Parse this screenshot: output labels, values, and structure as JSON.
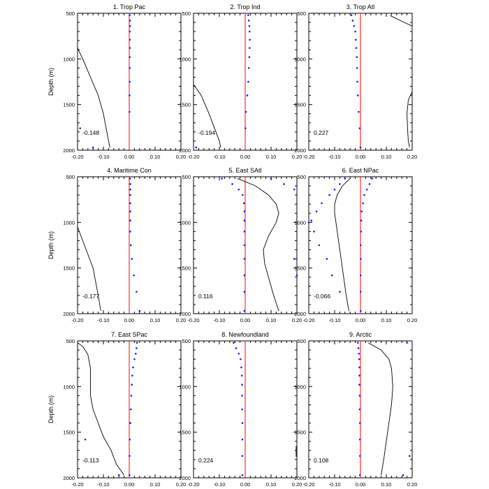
{
  "colors": {
    "zero_line": "#ff0000",
    "dots": "#1a1aff",
    "curve": "#000000",
    "axes": "#000000"
  },
  "chart_data": [
    {
      "type": "line",
      "title": "1. Trop Pac",
      "value_label": "-0.148",
      "xlim": [
        -0.2,
        0.2
      ],
      "ylim": [
        2000,
        500
      ],
      "ylabel": "Depth (m)",
      "x_ticks": [
        "-0.20",
        "-0.10",
        "0.00",
        "0.10",
        "0.20"
      ],
      "y_ticks": [
        "500",
        "1000",
        "1500",
        "2000"
      ],
      "curve": {
        "x": [
          -0.2,
          -0.18,
          -0.15,
          -0.12,
          -0.1,
          -0.09,
          -0.08,
          -0.075
        ],
        "y": [
          880,
          1000,
          1200,
          1400,
          1600,
          1750,
          1900,
          1970
        ]
      },
      "dots": {
        "x": [
          0.002,
          0.003,
          0.003,
          0.002,
          0.002,
          0.002,
          0.002,
          0.002,
          0.002,
          0.001,
          0.001,
          -0.19,
          -0.14
        ],
        "y": [
          520,
          580,
          640,
          700,
          790,
          880,
          980,
          1100,
          1250,
          1400,
          1580,
          1760,
          1970
        ]
      }
    },
    {
      "type": "line",
      "title": "2. Trop Ind",
      "value_label": "-0.194",
      "xlim": [
        -0.2,
        0.2
      ],
      "ylim": [
        2000,
        500
      ],
      "x_ticks": [
        "-0.20",
        "-0.10",
        "0.00",
        "0.10",
        "0.20"
      ],
      "y_ticks": [
        "500",
        "1000",
        "1500",
        "2000"
      ],
      "curve": {
        "x": [
          -0.2,
          -0.17,
          -0.14,
          -0.12,
          -0.1,
          -0.095
        ],
        "y": [
          1280,
          1400,
          1600,
          1750,
          1900,
          1970
        ]
      },
      "dots": {
        "x": [
          0.012,
          0.014,
          0.016,
          0.017,
          0.018,
          0.017,
          0.016,
          0.014,
          0.012,
          0.008,
          0.003,
          0.001,
          -0.19
        ],
        "y": [
          520,
          580,
          640,
          700,
          790,
          880,
          980,
          1100,
          1250,
          1400,
          1580,
          1760,
          1970
        ]
      }
    },
    {
      "type": "line",
      "title": "3. Trop Atl",
      "value_label": "0.227",
      "xlim": [
        -0.2,
        0.2
      ],
      "ylim": [
        2000,
        500
      ],
      "x_ticks": [
        "-0.20",
        "-0.10",
        "0.00",
        "0.10",
        "0.20"
      ],
      "y_ticks": [
        "500",
        "1000",
        "1500",
        "2000"
      ],
      "curves": [
        {
          "x": [
            0.115,
            0.14,
            0.17,
            0.2
          ],
          "y": [
            525,
            560,
            600,
            640
          ]
        },
        {
          "x": [
            0.2,
            0.185,
            0.18,
            0.182,
            0.185,
            0.19
          ],
          "y": [
            1360,
            1450,
            1600,
            1750,
            1900,
            1970
          ]
        }
      ],
      "dots": {
        "x": [
          -0.035,
          -0.03,
          -0.025,
          -0.02,
          -0.018,
          -0.016,
          -0.014,
          -0.013,
          -0.012,
          -0.01,
          -0.007,
          -0.003,
          0.0
        ],
        "y": [
          520,
          580,
          640,
          700,
          790,
          880,
          980,
          1100,
          1250,
          1400,
          1580,
          1760,
          1970
        ]
      }
    },
    {
      "type": "line",
      "title": "4. Maritime Con",
      "value_label": "-0.177",
      "xlim": [
        -0.2,
        0.2
      ],
      "ylim": [
        2000,
        500
      ],
      "ylabel": "Depth (m)",
      "x_ticks": [
        "-0.20",
        "-0.10",
        "0.00",
        "0.10",
        "0.20"
      ],
      "y_ticks": [
        "500",
        "1000",
        "1500",
        "2000"
      ],
      "curve": {
        "x": [
          -0.2,
          -0.18,
          -0.16,
          -0.14,
          -0.13,
          -0.12,
          -0.11
        ],
        "y": [
          1050,
          1200,
          1350,
          1500,
          1650,
          1800,
          1970
        ]
      },
      "dots": {
        "x": [
          0.003,
          0.004,
          0.004,
          0.004,
          0.004,
          0.004,
          0.004,
          0.004,
          0.006,
          0.01,
          0.018,
          0.028,
          0.04
        ],
        "y": [
          520,
          580,
          640,
          700,
          790,
          880,
          980,
          1100,
          1250,
          1400,
          1580,
          1760,
          1970
        ]
      }
    },
    {
      "type": "line",
      "title": "5. East SAtl",
      "value_label": "0.116",
      "xlim": [
        -0.2,
        0.2
      ],
      "ylim": [
        2000,
        500
      ],
      "x_ticks": [
        "-0.20",
        "-0.10",
        "0.00",
        "0.10",
        "0.20"
      ],
      "y_ticks": [
        "500",
        "1000",
        "1500",
        "2000"
      ],
      "curve": {
        "x": [
          -0.03,
          0.04,
          0.09,
          0.12,
          0.13,
          0.12,
          0.09,
          0.07,
          0.075,
          0.09,
          0.11,
          0.13
        ],
        "y": [
          520,
          600,
          700,
          800,
          900,
          1000,
          1150,
          1300,
          1450,
          1600,
          1800,
          1970
        ]
      },
      "dots": {
        "x": [
          -0.09,
          -0.05,
          -0.025,
          -0.01,
          -0.005,
          -0.003,
          -0.003,
          -0.003,
          -0.003,
          -0.003,
          -0.003,
          -0.003,
          -0.003,
          0.1,
          0.15,
          0.19,
          0.19,
          0.2
        ],
        "y": [
          520,
          580,
          640,
          700,
          790,
          880,
          980,
          1100,
          1250,
          1400,
          1580,
          1760,
          1970,
          520,
          580,
          640,
          1400,
          1580
        ]
      }
    },
    {
      "type": "line",
      "title": "6. East NPac",
      "value_label": "-0.066",
      "xlim": [
        -0.2,
        0.2
      ],
      "ylim": [
        2000,
        500
      ],
      "x_ticks": [
        "-0.20",
        "-0.10",
        "0.00",
        "0.10",
        "0.20"
      ],
      "y_ticks": [
        "500",
        "1000",
        "1500",
        "2000"
      ],
      "curve": {
        "x": [
          -0.04,
          -0.07,
          -0.09,
          -0.1,
          -0.1,
          -0.095,
          -0.085,
          -0.075,
          -0.065,
          -0.055,
          -0.045
        ],
        "y": [
          520,
          600,
          700,
          800,
          900,
          1000,
          1200,
          1400,
          1600,
          1800,
          1970
        ]
      },
      "dots": {
        "x": [
          -0.06,
          -0.08,
          -0.1,
          -0.12,
          -0.15,
          -0.17,
          -0.19,
          -0.18,
          -0.16,
          -0.13,
          -0.11,
          -0.08,
          0.045,
          0.035,
          0.025,
          0.015,
          0.01,
          0.005,
          0.003,
          0.002,
          0.001,
          0.001,
          0.001,
          0.001,
          0.001,
          -0.2
        ],
        "y": [
          520,
          580,
          640,
          700,
          790,
          880,
          980,
          1100,
          1250,
          1400,
          1580,
          1760,
          520,
          580,
          640,
          700,
          790,
          880,
          980,
          1100,
          1250,
          1400,
          1580,
          1760,
          1970,
          1000
        ]
      }
    },
    {
      "type": "line",
      "title": "7. East SPac",
      "value_label": "-0.113",
      "xlim": [
        -0.2,
        0.2
      ],
      "ylim": [
        2000,
        500
      ],
      "ylabel": "Depth (m)",
      "x_ticks": [
        "-0.20",
        "-0.10",
        "0.00",
        "0.10",
        "0.20"
      ],
      "y_ticks": [
        "500",
        "1000",
        "1500",
        "2000"
      ],
      "curve": {
        "x": [
          -0.2,
          -0.18,
          -0.16,
          -0.15,
          -0.15,
          -0.15,
          -0.14,
          -0.12,
          -0.1,
          -0.07,
          -0.05,
          -0.02
        ],
        "y": [
          520,
          560,
          650,
          800,
          950,
          1100,
          1250,
          1400,
          1550,
          1700,
          1850,
          1970
        ]
      },
      "dots": {
        "x": [
          0.03,
          0.028,
          0.025,
          0.02,
          0.015,
          0.012,
          0.01,
          0.008,
          0.006,
          0.004,
          0.002,
          0.001,
          0.001,
          -0.17,
          -0.04
        ],
        "y": [
          520,
          580,
          640,
          700,
          790,
          880,
          980,
          1100,
          1250,
          1400,
          1580,
          1760,
          1970,
          1580,
          1970
        ]
      }
    },
    {
      "type": "line",
      "title": "8. Newfoundland",
      "value_label": "0.224",
      "xlim": [
        -0.2,
        0.2
      ],
      "ylim": [
        2000,
        500
      ],
      "x_ticks": [
        "-0.20",
        "-0.10",
        "0.00",
        "0.10",
        "0.20"
      ],
      "y_ticks": [
        "500",
        "1000",
        "1500",
        "2000"
      ],
      "curve": {
        "x": [
          0.197,
          0.197
        ],
        "y": [
          1650,
          1770
        ]
      },
      "dots": {
        "x": [
          -0.045,
          -0.035,
          -0.025,
          -0.018,
          -0.015,
          -0.013,
          -0.012,
          -0.012,
          -0.012,
          -0.011,
          -0.011,
          -0.011,
          -0.011
        ],
        "y": [
          520,
          580,
          640,
          700,
          790,
          880,
          980,
          1100,
          1250,
          1400,
          1580,
          1760,
          1970
        ]
      }
    },
    {
      "type": "line",
      "title": "9. Arctic",
      "value_label": "0.108",
      "xlim": [
        -0.2,
        0.2
      ],
      "ylim": [
        2000,
        500
      ],
      "x_ticks": [
        "-0.20",
        "-0.10",
        "0.00",
        "0.10",
        "0.20"
      ],
      "y_ticks": [
        "500",
        "1000",
        "1500",
        "2000"
      ],
      "curve": {
        "x": [
          0.03,
          0.08,
          0.11,
          0.12,
          0.125,
          0.12,
          0.11,
          0.1,
          0.09,
          0.08
        ],
        "y": [
          520,
          600,
          700,
          800,
          1000,
          1200,
          1400,
          1600,
          1800,
          1970
        ]
      },
      "dots": {
        "x": [
          -0.01,
          -0.008,
          -0.006,
          -0.005,
          -0.004,
          -0.004,
          -0.004,
          -0.003,
          -0.003,
          -0.002,
          -0.002,
          -0.002,
          -0.002,
          0.18,
          0.19,
          0.165
        ],
        "y": [
          520,
          580,
          640,
          700,
          790,
          880,
          980,
          1100,
          1250,
          1400,
          1580,
          1760,
          1970,
          520,
          1760,
          1970
        ]
      }
    }
  ]
}
